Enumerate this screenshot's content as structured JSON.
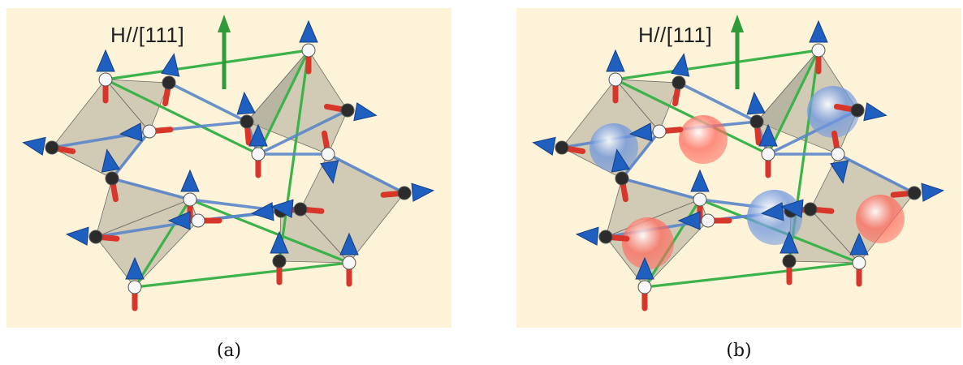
{
  "panels": [
    {
      "label": "H//[111]",
      "caption": "(a)",
      "show_spheres": false
    },
    {
      "label": "H//[111]",
      "caption": "(b)",
      "show_spheres": true
    }
  ],
  "colors": {
    "background": "#fdf3d9",
    "spin_up_cone": "#1f5fbf",
    "spin_shaft": "#d9362b",
    "cube_edge": "#3cb34a",
    "tetra_edge": "#5b86c9",
    "tetra_face": "#9c9c8c",
    "field_arrow": "#2f9a3a",
    "sphere_red": "#ff6b5e",
    "sphere_blue": "#6f97df"
  },
  "icons": [
    "field-arrow-icon",
    "spin-arrow-icon",
    "charge-sphere-icon"
  ]
}
